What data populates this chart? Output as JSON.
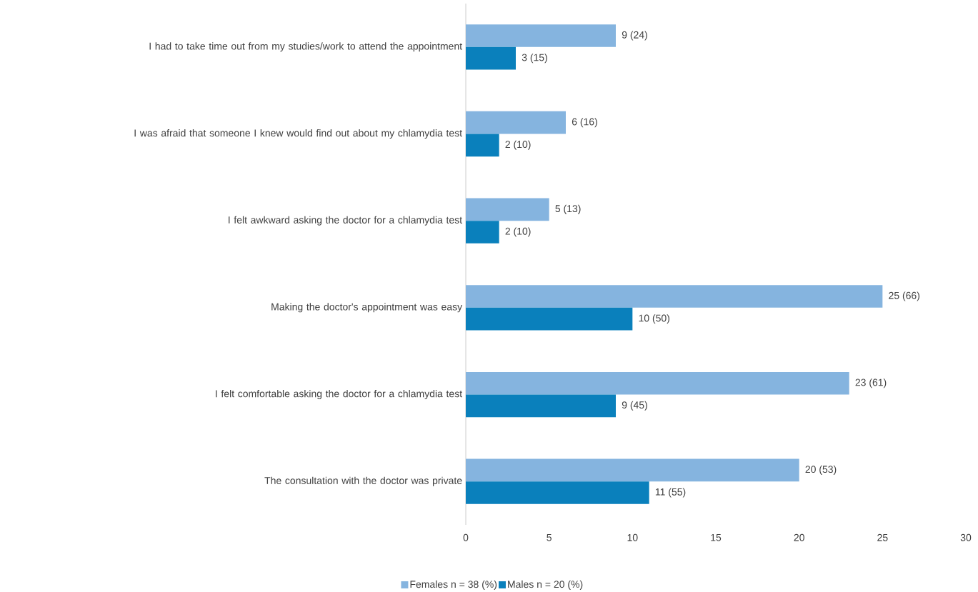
{
  "chart_data": {
    "type": "bar",
    "orientation": "horizontal",
    "categories": [
      "I had to take time out from my studies/work to attend the appointment",
      "I was afraid that someone I knew would find out about my chlamydia test",
      "I felt awkward asking the doctor for a chlamydia test",
      "Making the doctor's appointment was easy",
      "I felt comfortable asking the doctor for a chlamydia test",
      "The consultation with the doctor was private"
    ],
    "series": [
      {
        "name": "Females n = 38 (%)",
        "color": "#85b4df",
        "values": [
          9,
          6,
          5,
          25,
          23,
          20
        ],
        "value_labels": [
          "9 (24)",
          "6 (16)",
          "5 (13)",
          "25 (66)",
          "23 (61)",
          "20 (53)"
        ]
      },
      {
        "name": "Males n = 20 (%)",
        "color": "#0a80bc",
        "values": [
          3,
          2,
          2,
          10,
          9,
          11
        ],
        "value_labels": [
          "3 (15)",
          "2 (10)",
          "2 (10)",
          "10 (50)",
          "9 (45)",
          "11 (55)"
        ]
      }
    ],
    "xlim": [
      0,
      30
    ],
    "xticks": [
      0,
      5,
      10,
      15,
      20,
      25,
      30
    ],
    "legend": "bottom"
  }
}
